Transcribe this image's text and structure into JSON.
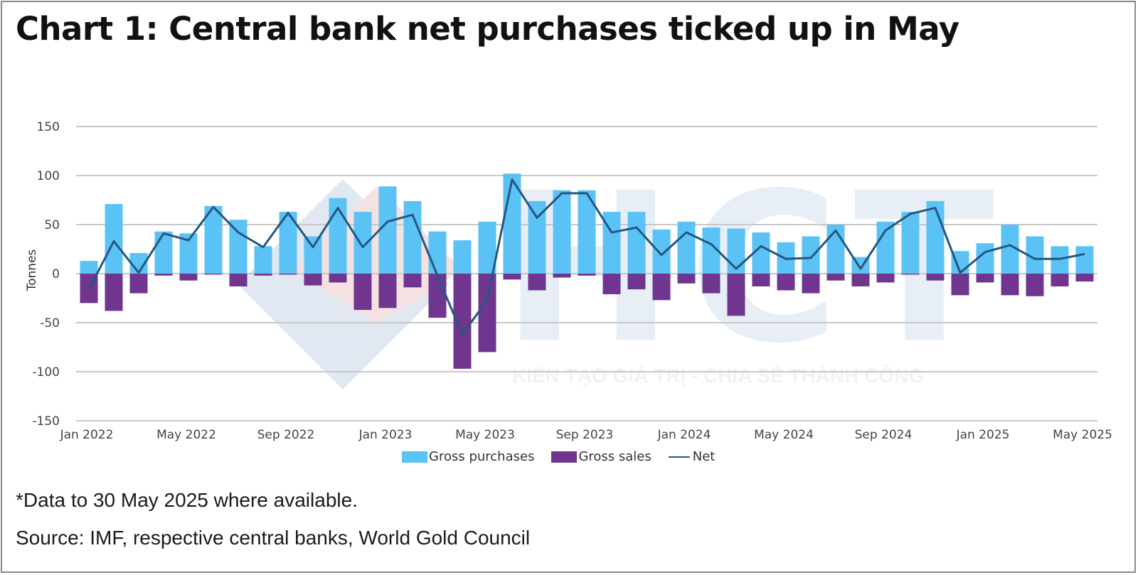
{
  "title": "Chart 1: Central bank net purchases ticked up in May",
  "footnote": "*Data to 30 May 2025 where available.",
  "source": "Source: IMF, respective central banks, World Gold Council",
  "watermark": {
    "logo_text": "HCT",
    "tagline": "KIẾN TẠO GIÁ TRỊ - CHIA SẺ THÀNH CÔNG"
  },
  "colors": {
    "gross_purchases": "#5bc2f5",
    "gross_sales": "#70358f",
    "net": "#24577f",
    "grid": "#c8c8c8",
    "axis_text": "#444444"
  },
  "legend": {
    "gross_purchases": "Gross purchases",
    "gross_sales": "Gross sales",
    "net": "Net"
  },
  "chart_data": {
    "type": "bar",
    "title": "Chart 1: Central bank net purchases ticked up in May",
    "xlabel": "",
    "ylabel": "Tonnes",
    "ylim": [
      -150,
      150
    ],
    "yticks": [
      150,
      100,
      50,
      0,
      -50,
      -100,
      -150
    ],
    "grid": true,
    "legend_position": "bottom",
    "xtick_labels": [
      "Jan 2022",
      "May 2022",
      "Sep 2022",
      "Jan 2023",
      "May 2023",
      "Sep 2023",
      "Jan 2024",
      "May 2024",
      "Sep 2024",
      "Jan 2025",
      "May 2025"
    ],
    "xtick_every": 4,
    "categories": [
      "Jan 2022",
      "Feb 2022",
      "Mar 2022",
      "Apr 2022",
      "May 2022",
      "Jun 2022",
      "Jul 2022",
      "Aug 2022",
      "Sep 2022",
      "Oct 2022",
      "Nov 2022",
      "Dec 2022",
      "Jan 2023",
      "Feb 2023",
      "Mar 2023",
      "Apr 2023",
      "May 2023",
      "Jun 2023",
      "Jul 2023",
      "Aug 2023",
      "Sep 2023",
      "Oct 2023",
      "Nov 2023",
      "Dec 2023",
      "Jan 2024",
      "Feb 2024",
      "Mar 2024",
      "Apr 2024",
      "May 2024",
      "Jun 2024",
      "Jul 2024",
      "Aug 2024",
      "Sep 2024",
      "Oct 2024",
      "Nov 2024",
      "Dec 2024",
      "Jan 2025",
      "Feb 2025",
      "Mar 2025",
      "Apr 2025",
      "May 2025"
    ],
    "series": [
      {
        "name": "Gross purchases",
        "type": "bar",
        "values": [
          13,
          71,
          21,
          43,
          41,
          69,
          55,
          28,
          63,
          38,
          77,
          63,
          89,
          74,
          43,
          34,
          53,
          102,
          74,
          85,
          85,
          63,
          63,
          45,
          53,
          47,
          46,
          42,
          32,
          38,
          50,
          17,
          53,
          63,
          74,
          23,
          31,
          50,
          38,
          28,
          28
        ]
      },
      {
        "name": "Gross sales",
        "type": "bar",
        "values": [
          -30,
          -38,
          -20,
          -2,
          -7,
          -1,
          -13,
          -2,
          -1,
          -12,
          -9,
          -37,
          -35,
          -14,
          -45,
          -97,
          -80,
          -6,
          -17,
          -4,
          -2,
          -21,
          -16,
          -27,
          -10,
          -20,
          -43,
          -13,
          -17,
          -20,
          -7,
          -13,
          -9,
          -1,
          -7,
          -22,
          -9,
          -22,
          -23,
          -13,
          -8
        ]
      },
      {
        "name": "Net",
        "type": "line",
        "values": [
          -16,
          33,
          1,
          41,
          34,
          68,
          42,
          27,
          62,
          27,
          67,
          27,
          53,
          60,
          -2,
          -62,
          -27,
          96,
          57,
          82,
          82,
          42,
          47,
          19,
          42,
          30,
          5,
          28,
          15,
          16,
          44,
          5,
          44,
          61,
          67,
          1,
          22,
          29,
          15,
          15,
          20
        ]
      }
    ]
  }
}
